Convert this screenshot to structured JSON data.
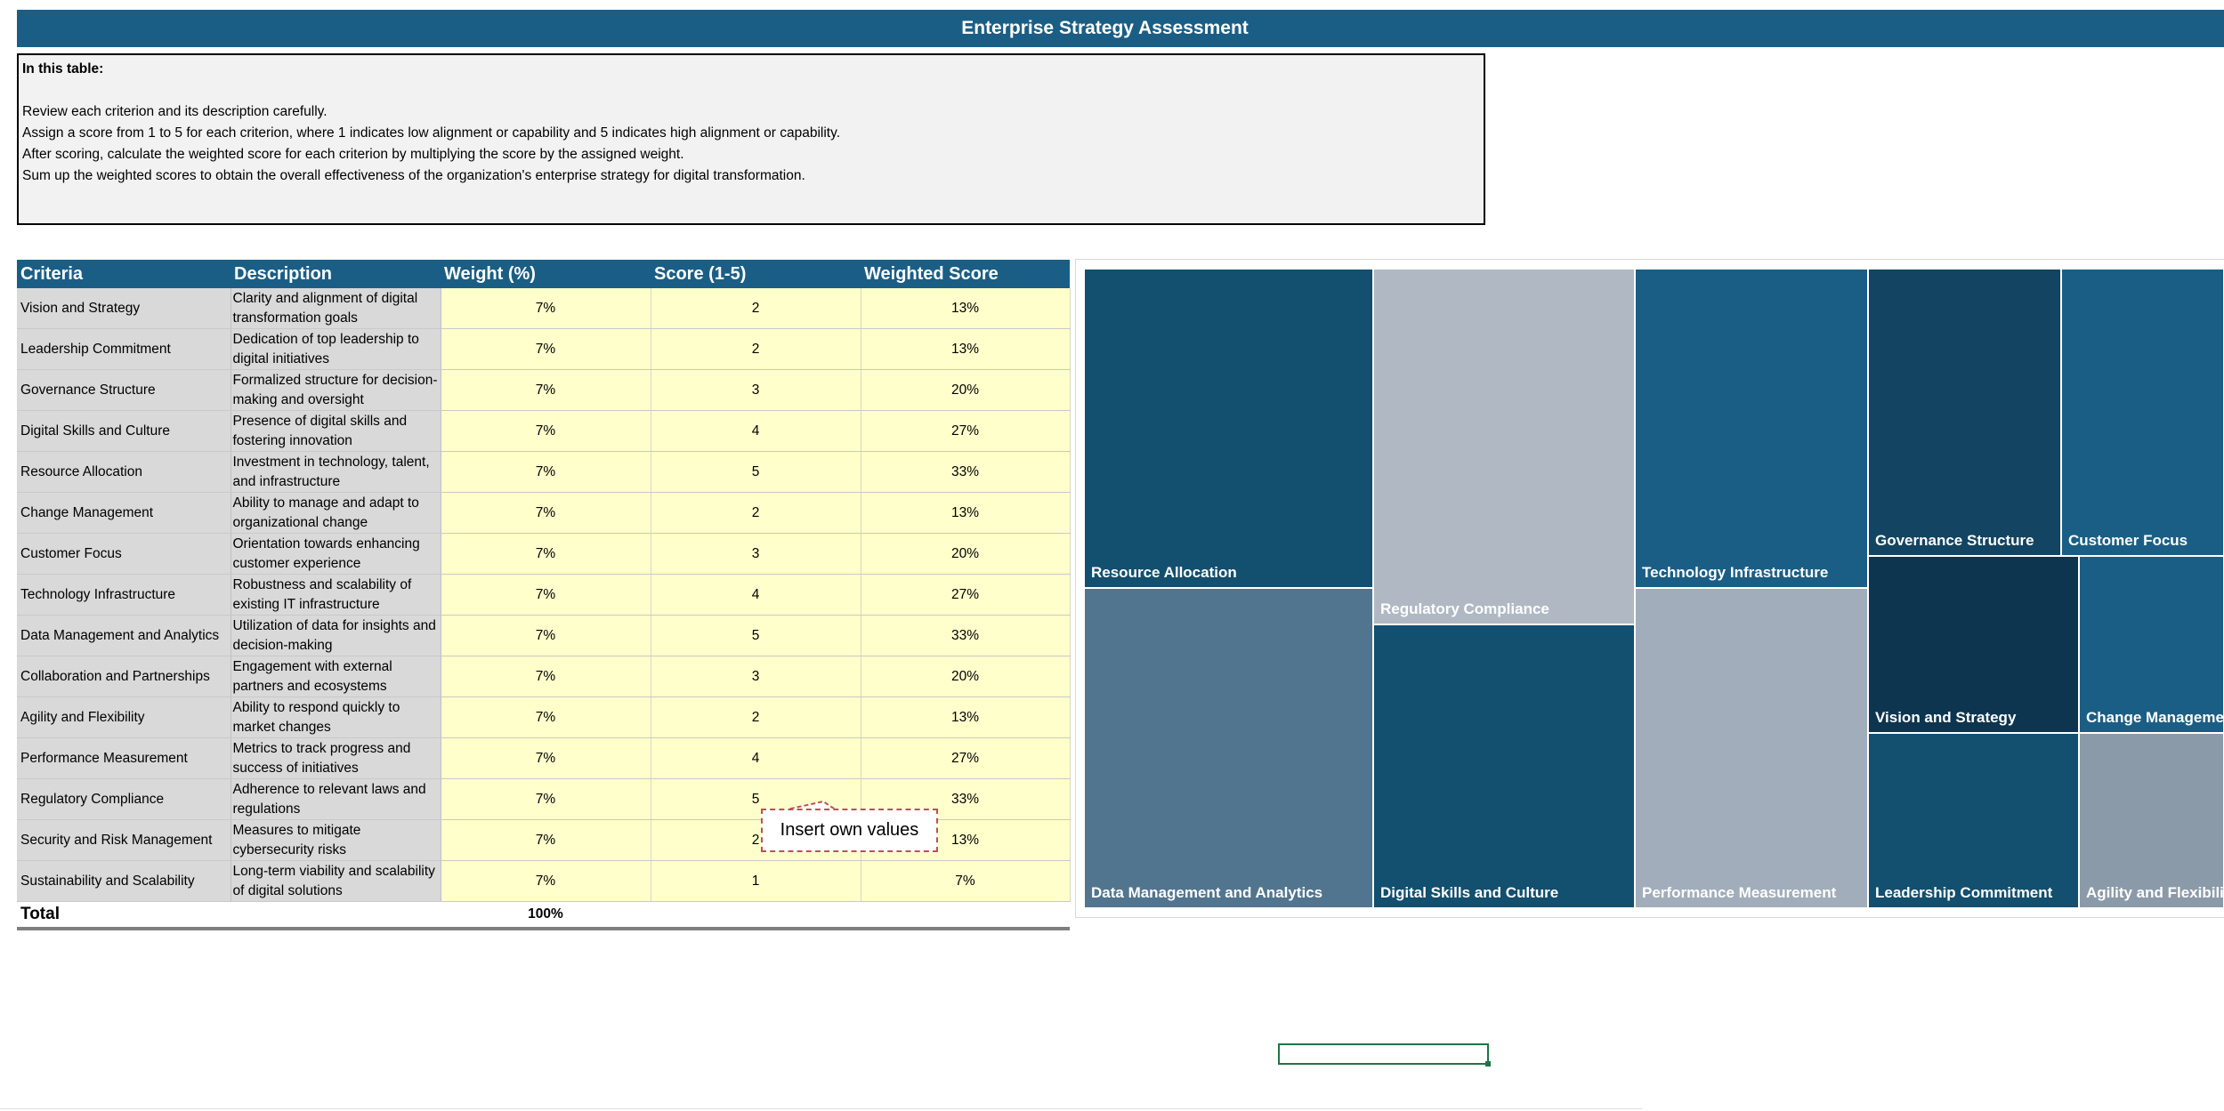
{
  "title": "Enterprise Strategy  Assessment",
  "instructions": {
    "heading": "In this table:",
    "lines": [
      "Review each criterion and its description carefully.",
      "Assign a score from 1 to 5 for each criterion, where 1 indicates low alignment or capability and 5 indicates high alignment or capability.",
      "After scoring, calculate the weighted score for each criterion by multiplying the score by the assigned weight.",
      "Sum up the weighted scores to obtain the overall effectiveness of the organization's enterprise strategy for digital transformation."
    ]
  },
  "table": {
    "headers": [
      "Criteria",
      "Description",
      "Weight (%)",
      "Score (1-5)",
      "Weighted Score"
    ],
    "rows": [
      {
        "criteria": "Vision and Strategy",
        "description": "Clarity and alignment of digital transformation goals",
        "weight": "7%",
        "score": "2",
        "weighted": "13%"
      },
      {
        "criteria": "Leadership Commitment",
        "description": "Dedication of top leadership to digital initiatives",
        "weight": "7%",
        "score": "2",
        "weighted": "13%"
      },
      {
        "criteria": "Governance Structure",
        "description": "Formalized structure for decision-making and oversight",
        "weight": "7%",
        "score": "3",
        "weighted": "20%"
      },
      {
        "criteria": "Digital Skills and Culture",
        "description": "Presence of digital skills and fostering innovation",
        "weight": "7%",
        "score": "4",
        "weighted": "27%"
      },
      {
        "criteria": "Resource Allocation",
        "description": "Investment in technology, talent, and infrastructure",
        "weight": "7%",
        "score": "5",
        "weighted": "33%"
      },
      {
        "criteria": "Change Management",
        "description": "Ability to manage and adapt to organizational change",
        "weight": "7%",
        "score": "2",
        "weighted": "13%"
      },
      {
        "criteria": "Customer Focus",
        "description": "Orientation towards enhancing customer experience",
        "weight": "7%",
        "score": "3",
        "weighted": "20%"
      },
      {
        "criteria": "Technology Infrastructure",
        "description": "Robustness and scalability of existing IT infrastructure",
        "weight": "7%",
        "score": "4",
        "weighted": "27%"
      },
      {
        "criteria": "Data Management and Analytics",
        "description": "Utilization of data for insights and decision-making",
        "weight": "7%",
        "score": "5",
        "weighted": "33%"
      },
      {
        "criteria": "Collaboration and Partnerships",
        "description": "Engagement with external partners and ecosystems",
        "weight": "7%",
        "score": "3",
        "weighted": "20%"
      },
      {
        "criteria": "Agility and Flexibility",
        "description": "Ability to respond quickly to market changes",
        "weight": "7%",
        "score": "2",
        "weighted": "13%"
      },
      {
        "criteria": "Performance Measurement",
        "description": "Metrics to track progress and success of initiatives",
        "weight": "7%",
        "score": "4",
        "weighted": "27%"
      },
      {
        "criteria": "Regulatory Compliance",
        "description": "Adherence to relevant laws and regulations",
        "weight": "7%",
        "score": "5",
        "weighted": "33%"
      },
      {
        "criteria": "Security and Risk Management",
        "description": "Measures to mitigate cybersecurity risks",
        "weight": "7%",
        "score": "2",
        "weighted": "13%"
      },
      {
        "criteria": "Sustainability and Scalability",
        "description": "Long-term viability and scalability of digital solutions",
        "weight": "7%",
        "score": "1",
        "weighted": "7%"
      }
    ],
    "total_label": "Total",
    "total_weight": "100%"
  },
  "callout": "Insert own values",
  "treemap": {
    "tiles": [
      {
        "label": "Resource Allocation",
        "color": "#134f6e"
      },
      {
        "label": "Data Management and Analytics",
        "color": "#52758f"
      },
      {
        "label": "Regulatory Compliance",
        "color": "#b0b9c3"
      },
      {
        "label": "Digital Skills and Culture",
        "color": "#134f6e"
      },
      {
        "label": "Technology Infrastructure",
        "color": "#1b5e85"
      },
      {
        "label": "Performance Measurement",
        "color": "#a1adba"
      },
      {
        "label": "Governance Structure",
        "color": "#134461"
      },
      {
        "label": "Customer Focus",
        "color": "#1b5e85"
      },
      {
        "label": "Vision and Strategy",
        "color": "#0d3550"
      },
      {
        "label": "Change Management",
        "color": "#1b5e85"
      },
      {
        "label": "Leadership Commitment",
        "color": "#134f6e"
      },
      {
        "label": "Agility and Flexibility",
        "color": "#8b9aa8"
      }
    ]
  },
  "chart_data": {
    "type": "treemap",
    "categories": [
      "Resource Allocation",
      "Data Management and Analytics",
      "Regulatory Compliance",
      "Digital Skills and Culture",
      "Technology Infrastructure",
      "Performance Measurement",
      "Governance Structure",
      "Customer Focus",
      "Vision and Strategy",
      "Change Management",
      "Leadership Commitment",
      "Agility and Flexibility"
    ],
    "values": [
      5,
      5,
      5,
      4,
      4,
      4,
      3,
      3,
      2,
      2,
      2,
      2
    ]
  }
}
